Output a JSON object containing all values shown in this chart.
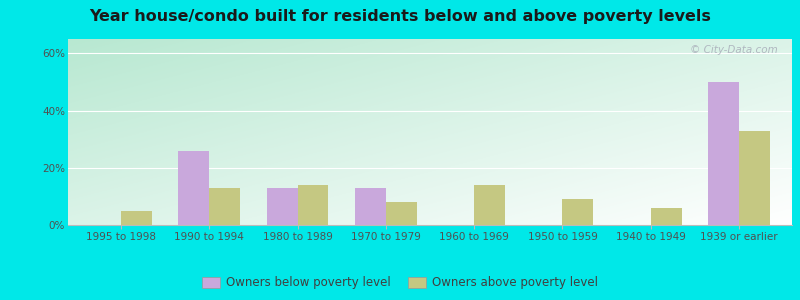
{
  "title": "Year house/condo built for residents below and above poverty levels",
  "categories": [
    "1995 to 1998",
    "1990 to 1994",
    "1980 to 1989",
    "1970 to 1979",
    "1960 to 1969",
    "1950 to 1959",
    "1940 to 1949",
    "1939 or earlier"
  ],
  "below_poverty": [
    0,
    26,
    13,
    13,
    0,
    0,
    0,
    50
  ],
  "above_poverty": [
    5,
    13,
    14,
    8,
    14,
    9,
    6,
    33
  ],
  "below_color": "#c9a8dc",
  "above_color": "#c5c882",
  "background_outer": "#00e8e8",
  "ylim": [
    0,
    65
  ],
  "yticks": [
    0,
    20,
    40,
    60
  ],
  "ytick_labels": [
    "0%",
    "20%",
    "40%",
    "60%"
  ],
  "legend_below": "Owners below poverty level",
  "legend_above": "Owners above poverty level",
  "title_fontsize": 11.5,
  "tick_fontsize": 7.5,
  "legend_fontsize": 8.5,
  "bar_width": 0.35
}
